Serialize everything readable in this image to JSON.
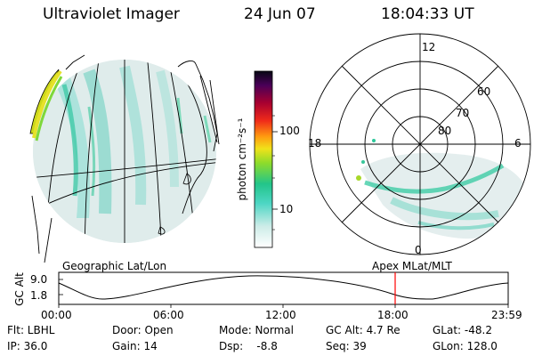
{
  "header": {
    "instrument": "Ultraviolet Imager",
    "date": "24 Jun 07",
    "time": "18:04:33 UT"
  },
  "colorbar": {
    "unit_label": "photon cm⁻²s⁻¹",
    "ticks": [
      "100",
      "10"
    ]
  },
  "polar_plot": {
    "mlt_labels": {
      "top": "12",
      "right": "6",
      "bottom": "0",
      "left": "18"
    },
    "lat_labels": [
      "60",
      "70",
      "80"
    ]
  },
  "timeline": {
    "left_caption": "Geographic Lat/Lon",
    "right_caption": "Apex MLat/MLT",
    "axis_title": "GC Alt",
    "y_ticks": [
      "9.0",
      "1.8"
    ],
    "x_ticks": [
      "00:00",
      "06:00",
      "12:00",
      "18:00",
      "23:59"
    ],
    "marker_color": "#ff0000"
  },
  "info": {
    "row1": {
      "flt": "Flt: LBHL",
      "door": "Door: Open",
      "mode": "Mode: Normal",
      "gcalt": "GC Alt: 4.7 Re",
      "glat": "GLat: -48.2"
    },
    "row2": {
      "ip": "IP: 36.0",
      "gain": "Gain: 14",
      "dsp": "Dsp:    -8.8",
      "seq": "Seq: 39",
      "glon": "GLon: 128.0"
    }
  }
}
